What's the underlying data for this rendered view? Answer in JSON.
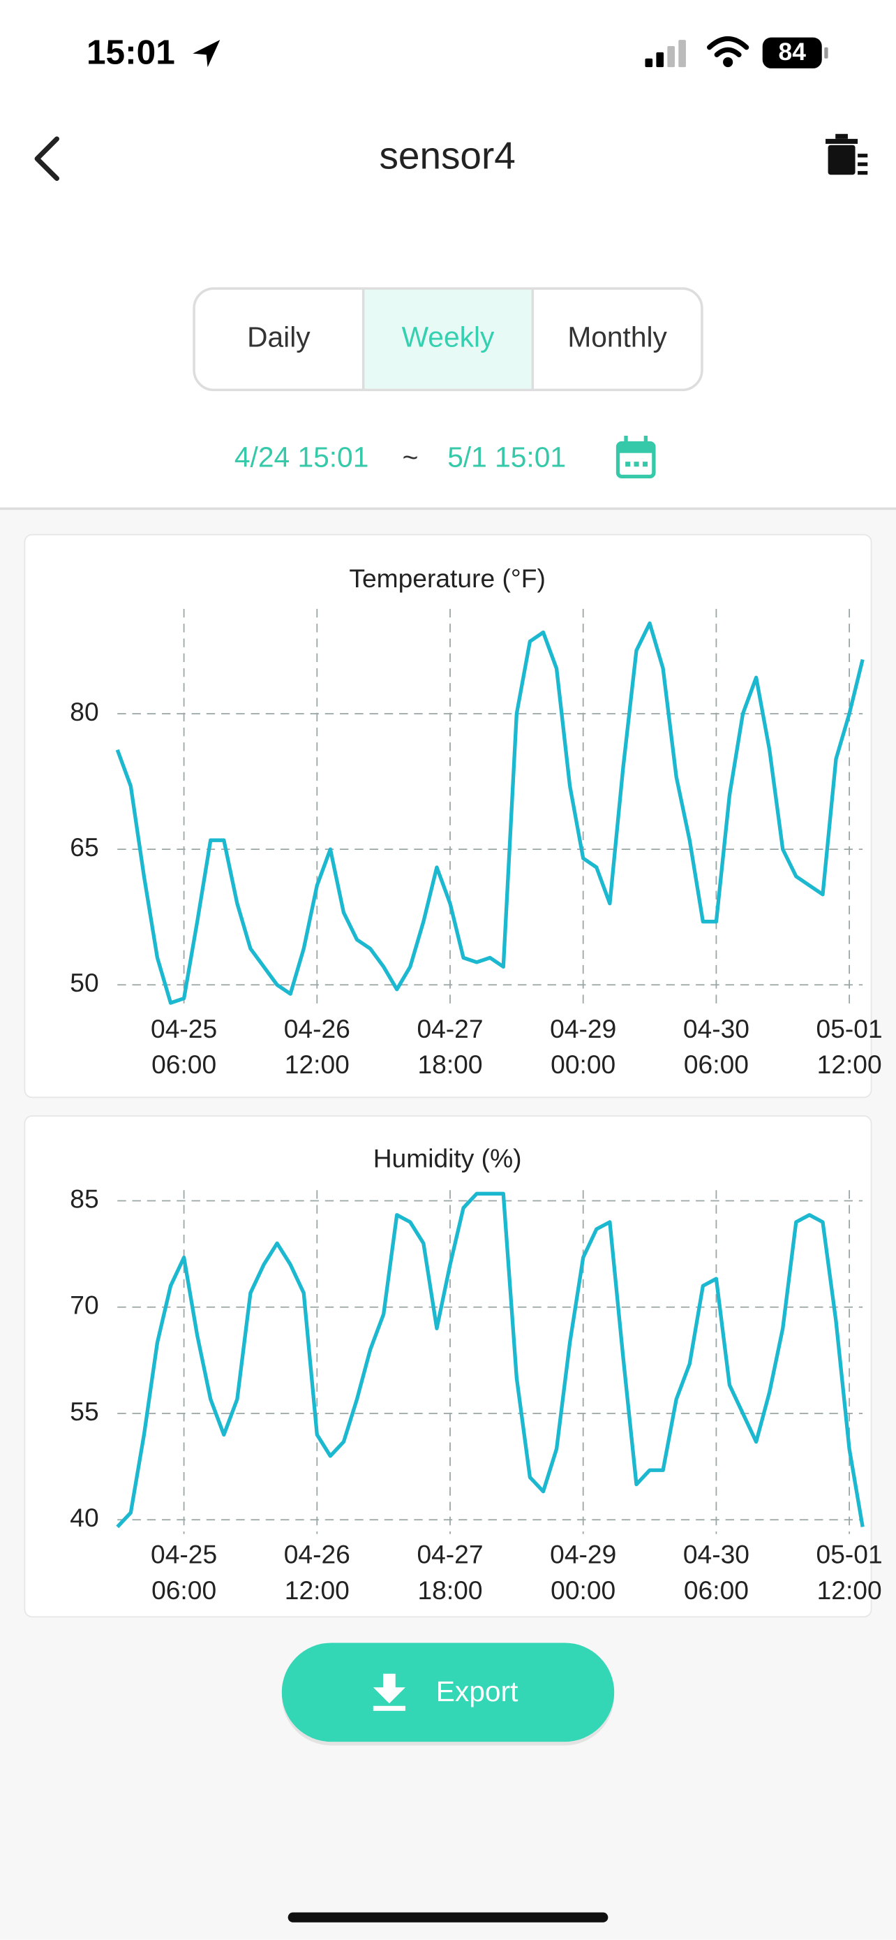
{
  "status_bar": {
    "time": "15:01",
    "battery": "84"
  },
  "header": {
    "title": "sensor4"
  },
  "tabs": {
    "options": [
      "Daily",
      "Weekly",
      "Monthly"
    ],
    "selected": 1
  },
  "date_range": {
    "start": "4/24 15:01",
    "separator": "~",
    "end": "5/1 15:01"
  },
  "charts": [
    {
      "chart_data": {
        "type": "line",
        "title": "Temperature (°F)",
        "color": "#1bb8cf",
        "grid": true,
        "x": [
          "04-24 15:00",
          "04-24 18:00",
          "04-24 21:00",
          "04-25 00:00",
          "04-25 03:00",
          "04-25 06:00",
          "04-25 09:00",
          "04-25 12:00",
          "04-25 15:00",
          "04-25 18:00",
          "04-25 21:00",
          "04-26 00:00",
          "04-26 03:00",
          "04-26 06:00",
          "04-26 09:00",
          "04-26 12:00",
          "04-26 15:00",
          "04-26 18:00",
          "04-26 21:00",
          "04-27 00:00",
          "04-27 03:00",
          "04-27 06:00",
          "04-27 09:00",
          "04-27 12:00",
          "04-27 15:00",
          "04-27 18:00",
          "04-27 21:00",
          "04-28 00:00",
          "04-28 03:00",
          "04-28 06:00",
          "04-28 09:00",
          "04-28 12:00",
          "04-28 15:00",
          "04-28 18:00",
          "04-28 21:00",
          "04-29 00:00",
          "04-29 03:00",
          "04-29 06:00",
          "04-29 09:00",
          "04-29 12:00",
          "04-29 15:00",
          "04-29 18:00",
          "04-29 21:00",
          "04-30 00:00",
          "04-30 03:00",
          "04-30 06:00",
          "04-30 09:00",
          "04-30 12:00",
          "04-30 15:00",
          "04-30 18:00",
          "04-30 21:00",
          "05-01 00:00",
          "05-01 03:00",
          "05-01 06:00",
          "05-01 09:00",
          "05-01 12:00",
          "05-01 15:00"
        ],
        "values": [
          76,
          72,
          62,
          53,
          48,
          48.5,
          57,
          66,
          66,
          59,
          54,
          52,
          50,
          49,
          54,
          61,
          65,
          58,
          55,
          54,
          52,
          49.5,
          52,
          57,
          63,
          59,
          53,
          52.5,
          53,
          52,
          80,
          88,
          89,
          85,
          72,
          64,
          63,
          59,
          74,
          87,
          90,
          85,
          73,
          66,
          57,
          57,
          71,
          80,
          84,
          76,
          65,
          62,
          61,
          60,
          75,
          80,
          86
        ],
        "xlim": [
          "04-24 15:00",
          "05-01 15:00"
        ],
        "xticks": [
          {
            "value": "04-25 06:00",
            "label": "04-25 06:00"
          },
          {
            "value": "04-26 12:00",
            "label": "04-26 12:00"
          },
          {
            "value": "04-27 18:00",
            "label": "04-27 18:00"
          },
          {
            "value": "04-29 00:00",
            "label": "04-29 00:00"
          },
          {
            "value": "04-30 06:00",
            "label": "04-30 06:00"
          },
          {
            "value": "05-01 12:00",
            "label": "05-01 12:00"
          }
        ],
        "ylim": [
          47.4,
          91.6
        ],
        "yticks": [
          50,
          65,
          80
        ]
      }
    },
    {
      "chart_data": {
        "type": "line",
        "title": "Humidity (%)",
        "color": "#1bb8cf",
        "grid": true,
        "x": [
          "04-24 15:00",
          "04-24 18:00",
          "04-24 21:00",
          "04-25 00:00",
          "04-25 03:00",
          "04-25 06:00",
          "04-25 09:00",
          "04-25 12:00",
          "04-25 15:00",
          "04-25 18:00",
          "04-25 21:00",
          "04-26 00:00",
          "04-26 03:00",
          "04-26 06:00",
          "04-26 09:00",
          "04-26 12:00",
          "04-26 15:00",
          "04-26 18:00",
          "04-26 21:00",
          "04-27 00:00",
          "04-27 03:00",
          "04-27 06:00",
          "04-27 09:00",
          "04-27 12:00",
          "04-27 15:00",
          "04-27 18:00",
          "04-27 21:00",
          "04-28 00:00",
          "04-28 03:00",
          "04-28 06:00",
          "04-28 09:00",
          "04-28 12:00",
          "04-28 15:00",
          "04-28 18:00",
          "04-28 21:00",
          "04-29 00:00",
          "04-29 03:00",
          "04-29 06:00",
          "04-29 09:00",
          "04-29 12:00",
          "04-29 15:00",
          "04-29 18:00",
          "04-29 21:00",
          "04-30 00:00",
          "04-30 03:00",
          "04-30 06:00",
          "04-30 09:00",
          "04-30 12:00",
          "04-30 15:00",
          "04-30 18:00",
          "04-30 21:00",
          "05-01 00:00",
          "05-01 03:00",
          "05-01 06:00",
          "05-01 09:00",
          "05-01 12:00",
          "05-01 15:00"
        ],
        "values": [
          39,
          41,
          52,
          65,
          73,
          77,
          66,
          57,
          52,
          57,
          72,
          76,
          79,
          76,
          72,
          52,
          49,
          51,
          57,
          64,
          69,
          83,
          82,
          79,
          67,
          76,
          84,
          86,
          86,
          86,
          60,
          46,
          44,
          50,
          65,
          77,
          81,
          82,
          63,
          45,
          47,
          47,
          57,
          62,
          73,
          74,
          59,
          55,
          51,
          58,
          67,
          82,
          83,
          82,
          68,
          50,
          39
        ],
        "xlim": [
          "04-24 15:00",
          "05-01 15:00"
        ],
        "xticks": [
          {
            "value": "04-25 06:00",
            "label": "04-25 06:00"
          },
          {
            "value": "04-26 12:00",
            "label": "04-26 12:00"
          },
          {
            "value": "04-27 18:00",
            "label": "04-27 18:00"
          },
          {
            "value": "04-29 00:00",
            "label": "04-29 00:00"
          },
          {
            "value": "04-30 06:00",
            "label": "04-30 06:00"
          },
          {
            "value": "05-01 12:00",
            "label": "05-01 12:00"
          }
        ],
        "ylim": [
          38,
          86.5
        ],
        "yticks": [
          40,
          55,
          70,
          85
        ]
      }
    }
  ],
  "export_button": {
    "label": "Export"
  }
}
